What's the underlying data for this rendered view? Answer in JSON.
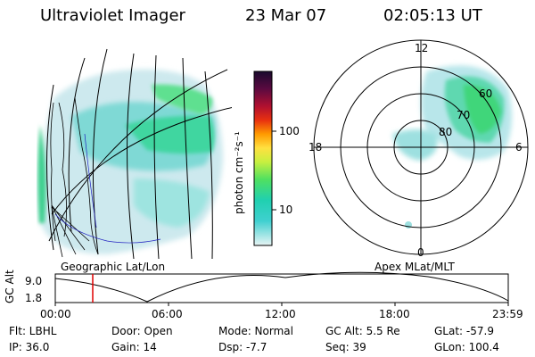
{
  "header": {
    "instrument": "Ultraviolet Imager",
    "date": "23 Mar 07",
    "time": "02:05:13 UT"
  },
  "colorbar": {
    "unit_label": "photon cm⁻²s⁻¹",
    "ticks": [
      "100",
      "10"
    ],
    "scale": "log",
    "colors": [
      "#1a0a2e",
      "#4a0a3e",
      "#8a0a3a",
      "#c01020",
      "#e83010",
      "#ff8a00",
      "#ffd000",
      "#f0f040",
      "#c0f040",
      "#60e060",
      "#20d0a0",
      "#20d0d0",
      "#a0e8e8",
      "#e0f0f0"
    ]
  },
  "left_map": {
    "title": "Geographic Lat/Lon"
  },
  "polar_map": {
    "title": "Apex MLat/MLT",
    "mlt_labels": {
      "top": "12",
      "left": "18",
      "right": "6",
      "bottom": "0"
    },
    "lat_labels": [
      "60",
      "70",
      "80"
    ]
  },
  "timeline": {
    "ylabel": "GC Alt",
    "y_ticks": [
      "9.0",
      "1.8"
    ],
    "x_ticks": [
      "00:00",
      "06:00",
      "12:00",
      "18:00",
      "23:59"
    ],
    "current_time": "02:05",
    "marker_color": "#e00000"
  },
  "info": {
    "filter": "Flt: LBHL",
    "ip": "IP: 36.0",
    "door": "Door: Open",
    "gain": "Gain: 14",
    "mode": "Mode: Normal",
    "dsp": "Dsp:   -7.7",
    "gc_alt": "GC Alt: 5.5 Re",
    "seq": "Seq: 39",
    "glat": "GLat: -57.9",
    "glon": "GLon: 100.4"
  }
}
